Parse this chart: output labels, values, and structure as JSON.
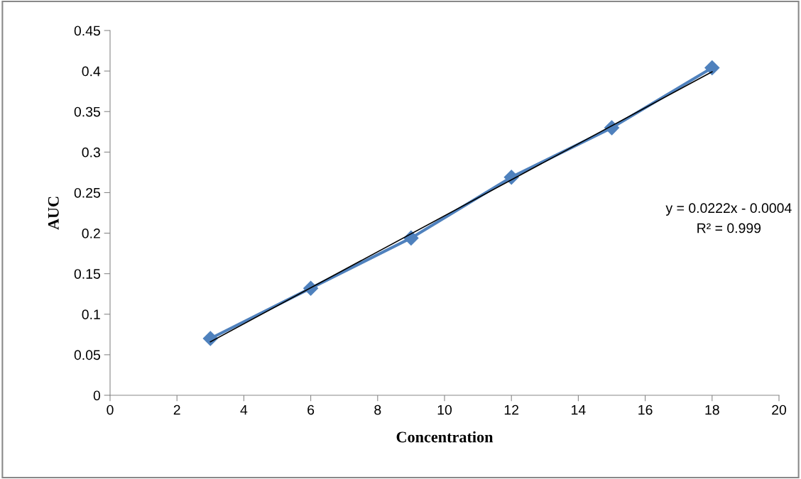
{
  "chart_data": {
    "type": "line",
    "xlabel": "Concentration",
    "ylabel": "AUC",
    "xlim": [
      0,
      20
    ],
    "xticks": [
      0,
      2,
      4,
      6,
      8,
      10,
      12,
      14,
      16,
      18,
      20
    ],
    "ylim": [
      0,
      0.45
    ],
    "yticks": [
      0,
      0.05,
      0.1,
      0.15,
      0.2,
      0.25,
      0.3,
      0.35,
      0.4,
      0.45
    ],
    "grid": false,
    "legend": false,
    "series": [
      {
        "color": "#4f81bd",
        "marker": "diamond",
        "x": [
          3,
          6,
          9,
          12,
          15,
          18
        ],
        "values": [
          0.07,
          0.132,
          0.194,
          0.269,
          0.33,
          0.404
        ]
      },
      {
        "color": "#000000",
        "marker": "none",
        "x": [
          3,
          18
        ],
        "values": [
          0.066,
          0.399
        ]
      }
    ],
    "annotations": [
      "y = 0.0222x - 0.0004",
      "R² = 0.999"
    ]
  }
}
